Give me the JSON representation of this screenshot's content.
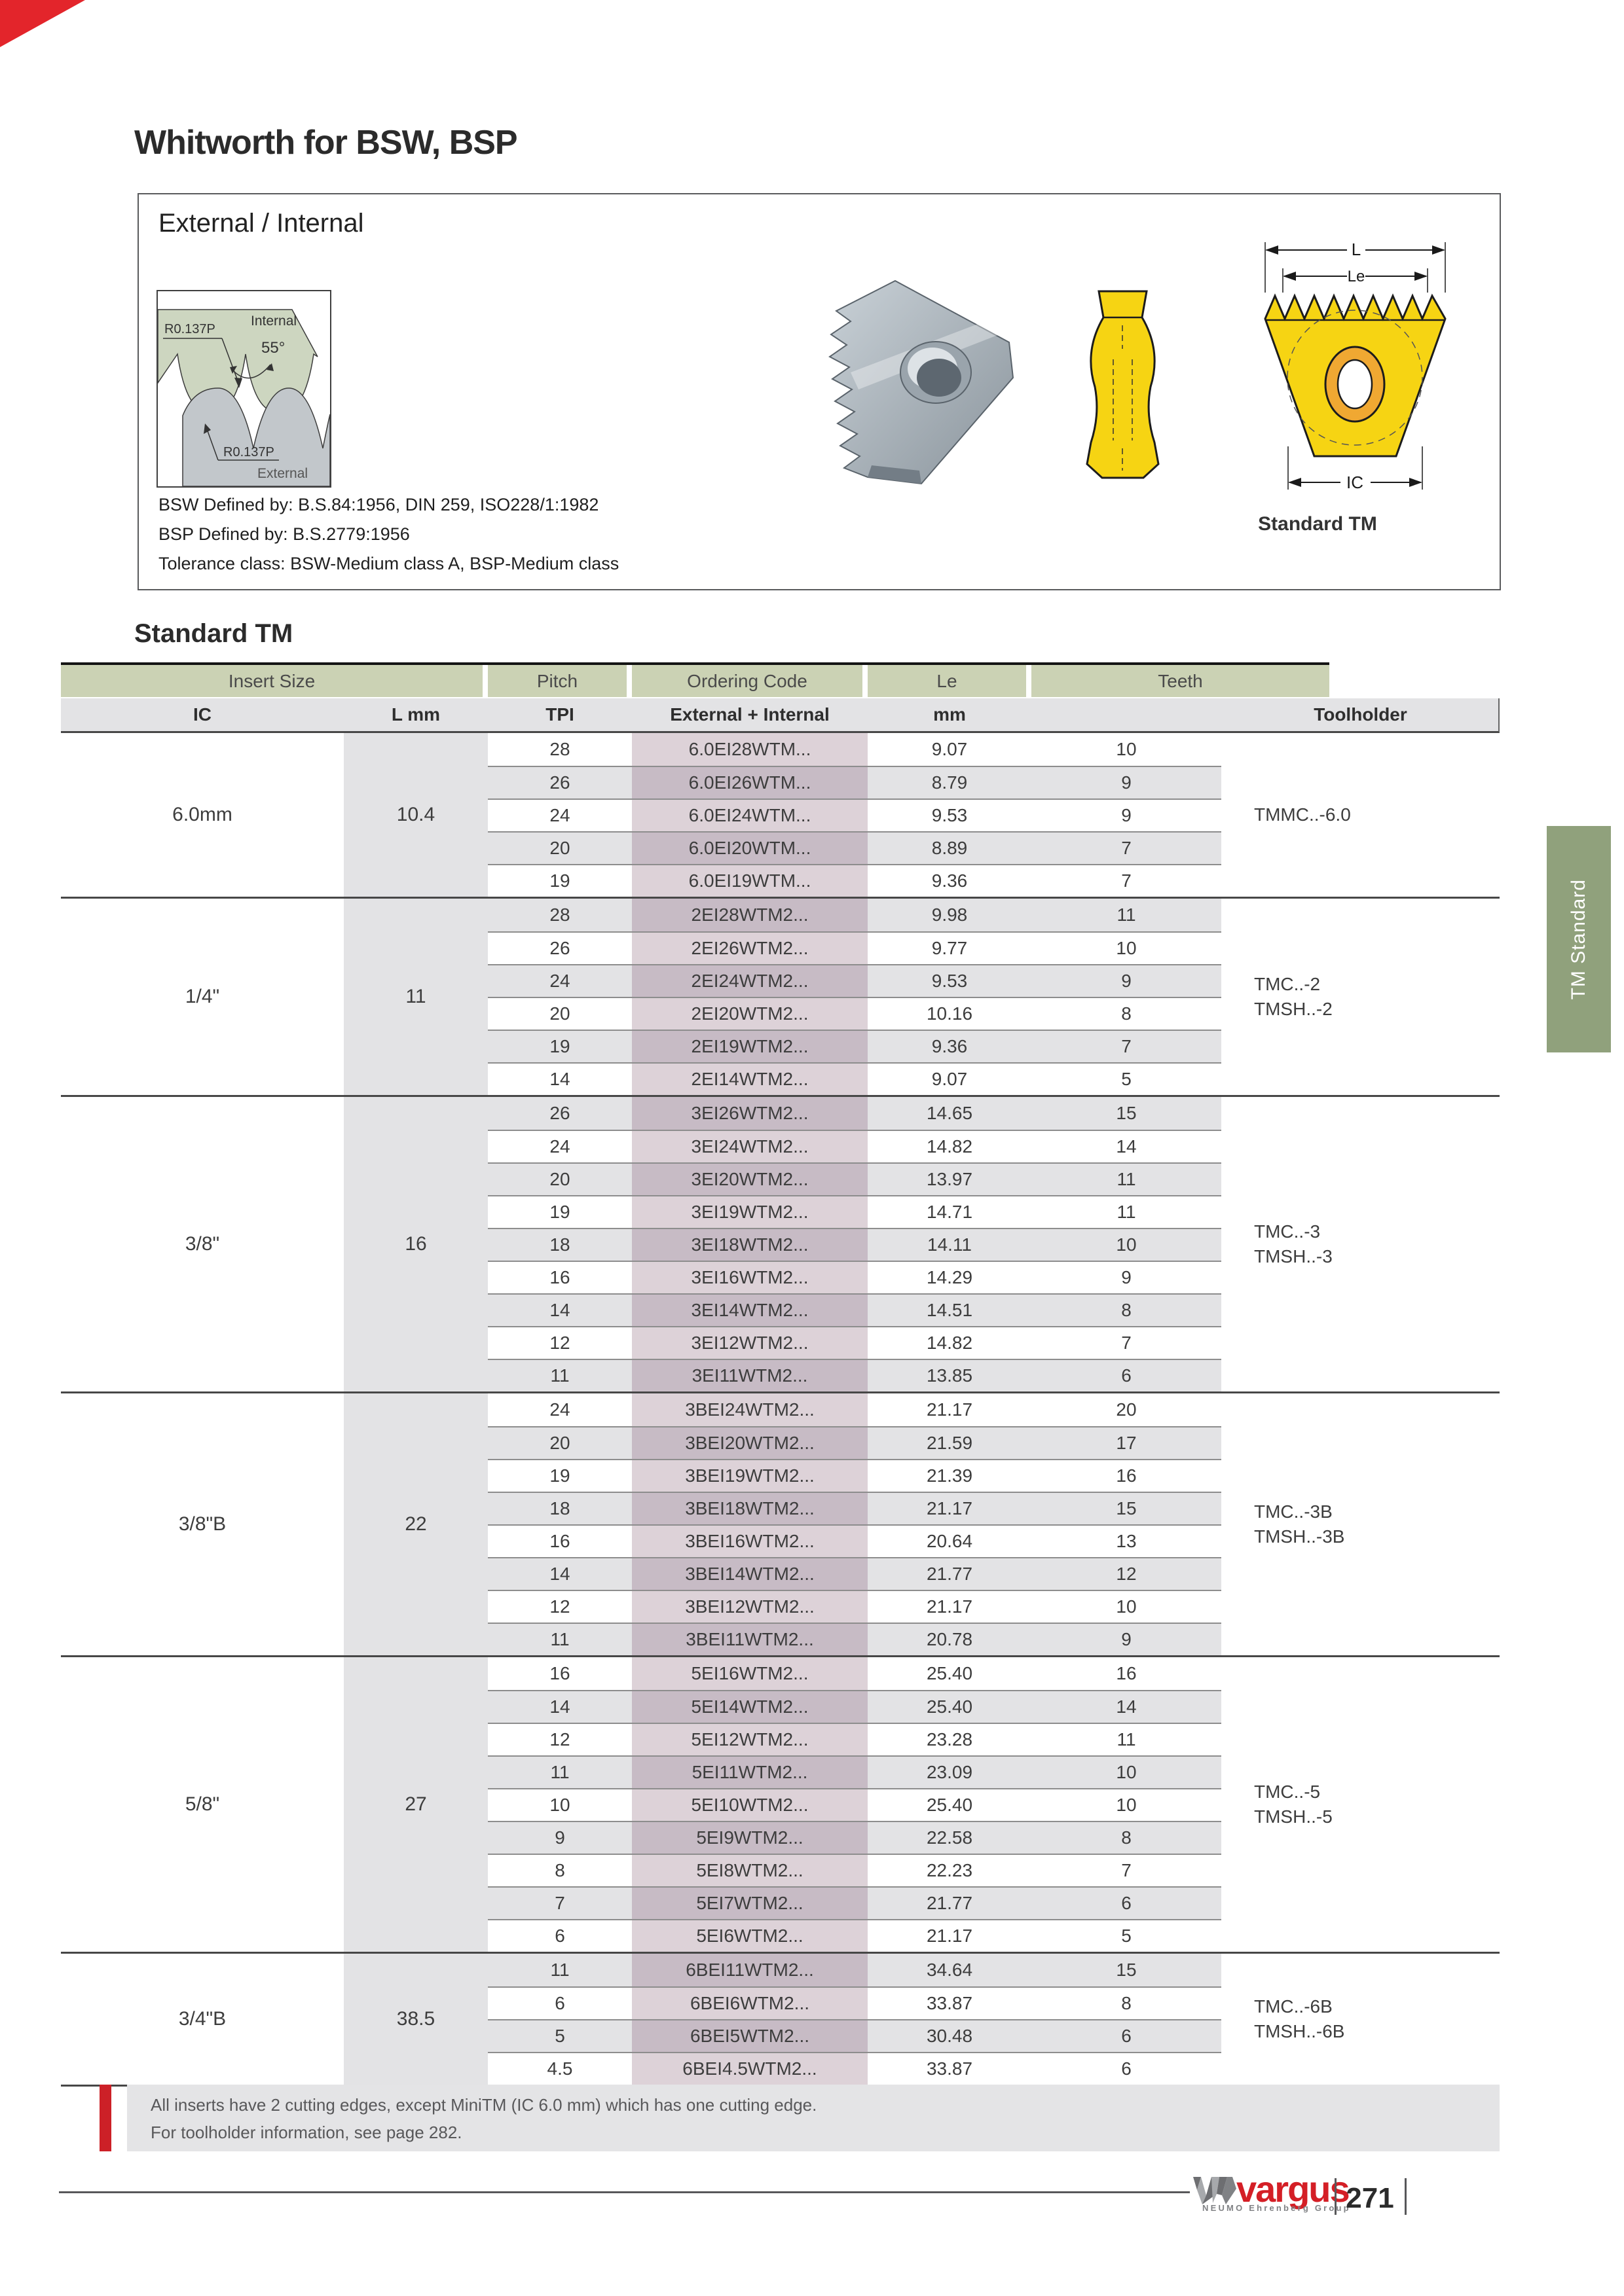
{
  "header": {
    "title": "Whitworth for BSW, BSP",
    "box_title": "External / Internal",
    "defined_lines": [
      "BSW Defined by: B.S.84:1956, DIN 259, ISO228/1:1982",
      "BSP Defined by: B.S.2779:1956",
      "Tolerance class: BSW-Medium class A, BSP-Medium class"
    ],
    "insert_caption": "Standard TM"
  },
  "profile": {
    "label_internal": "Internal",
    "label_external": "External",
    "angle": "55°",
    "radius_top": "R0.137P",
    "radius_bottom": "R0.137P"
  },
  "dims": {
    "l": "L",
    "le": "Le",
    "ic": "IC"
  },
  "side_tab": {
    "label": "TM Standard"
  },
  "table": {
    "section_title": "Standard TM",
    "col_headers_row1": {
      "insert_size": "Insert Size",
      "pitch": "Pitch",
      "ordering_code": "Ordering Code",
      "le": "Le",
      "teeth": "Teeth"
    },
    "col_headers_row2": {
      "ic": "IC",
      "l": "L mm",
      "tpi": "TPI",
      "code": "External + Internal",
      "mm": "mm",
      "toolholder": "Toolholder"
    },
    "groups": [
      {
        "ic": "6.0mm",
        "l": "10.4",
        "toolholder": [
          "TMMC..-6.0"
        ],
        "rows": [
          {
            "tpi": "28",
            "code": "6.0EI28WTM...",
            "le": "9.07",
            "teeth": "10"
          },
          {
            "tpi": "26",
            "code": "6.0EI26WTM...",
            "le": "8.79",
            "teeth": "9"
          },
          {
            "tpi": "24",
            "code": "6.0EI24WTM...",
            "le": "9.53",
            "teeth": "9"
          },
          {
            "tpi": "20",
            "code": "6.0EI20WTM...",
            "le": "8.89",
            "teeth": "7"
          },
          {
            "tpi": "19",
            "code": "6.0EI19WTM...",
            "le": "9.36",
            "teeth": "7"
          }
        ]
      },
      {
        "ic": "1/4\"",
        "l": "11",
        "toolholder": [
          "TMC..-2",
          "TMSH..-2"
        ],
        "rows": [
          {
            "tpi": "28",
            "code": "2EI28WTM2...",
            "le": "9.98",
            "teeth": "11"
          },
          {
            "tpi": "26",
            "code": "2EI26WTM2...",
            "le": "9.77",
            "teeth": "10"
          },
          {
            "tpi": "24",
            "code": "2EI24WTM2...",
            "le": "9.53",
            "teeth": "9"
          },
          {
            "tpi": "20",
            "code": "2EI20WTM2...",
            "le": "10.16",
            "teeth": "8"
          },
          {
            "tpi": "19",
            "code": "2EI19WTM2...",
            "le": "9.36",
            "teeth": "7"
          },
          {
            "tpi": "14",
            "code": "2EI14WTM2...",
            "le": "9.07",
            "teeth": "5"
          }
        ]
      },
      {
        "ic": "3/8\"",
        "l": "16",
        "toolholder": [
          "TMC..-3",
          "TMSH..-3"
        ],
        "rows": [
          {
            "tpi": "26",
            "code": "3EI26WTM2...",
            "le": "14.65",
            "teeth": "15"
          },
          {
            "tpi": "24",
            "code": "3EI24WTM2...",
            "le": "14.82",
            "teeth": "14"
          },
          {
            "tpi": "20",
            "code": "3EI20WTM2...",
            "le": "13.97",
            "teeth": "11"
          },
          {
            "tpi": "19",
            "code": "3EI19WTM2...",
            "le": "14.71",
            "teeth": "11"
          },
          {
            "tpi": "18",
            "code": "3EI18WTM2...",
            "le": "14.11",
            "teeth": "10"
          },
          {
            "tpi": "16",
            "code": "3EI16WTM2...",
            "le": "14.29",
            "teeth": "9"
          },
          {
            "tpi": "14",
            "code": "3EI14WTM2...",
            "le": "14.51",
            "teeth": "8"
          },
          {
            "tpi": "12",
            "code": "3EI12WTM2...",
            "le": "14.82",
            "teeth": "7"
          },
          {
            "tpi": "11",
            "code": "3EI11WTM2...",
            "le": "13.85",
            "teeth": "6"
          }
        ]
      },
      {
        "ic": "3/8\"B",
        "l": "22",
        "toolholder": [
          "TMC..-3B",
          "TMSH..-3B"
        ],
        "rows": [
          {
            "tpi": "24",
            "code": "3BEI24WTM2...",
            "le": "21.17",
            "teeth": "20"
          },
          {
            "tpi": "20",
            "code": "3BEI20WTM2...",
            "le": "21.59",
            "teeth": "17"
          },
          {
            "tpi": "19",
            "code": "3BEI19WTM2...",
            "le": "21.39",
            "teeth": "16"
          },
          {
            "tpi": "18",
            "code": "3BEI18WTM2...",
            "le": "21.17",
            "teeth": "15"
          },
          {
            "tpi": "16",
            "code": "3BEI16WTM2...",
            "le": "20.64",
            "teeth": "13"
          },
          {
            "tpi": "14",
            "code": "3BEI14WTM2...",
            "le": "21.77",
            "teeth": "12"
          },
          {
            "tpi": "12",
            "code": "3BEI12WTM2...",
            "le": "21.17",
            "teeth": "10"
          },
          {
            "tpi": "11",
            "code": "3BEI11WTM2...",
            "le": "20.78",
            "teeth": "9"
          }
        ]
      },
      {
        "ic": "5/8\"",
        "l": "27",
        "toolholder": [
          "TMC..-5",
          "TMSH..-5"
        ],
        "rows": [
          {
            "tpi": "16",
            "code": "5EI16WTM2...",
            "le": "25.40",
            "teeth": "16"
          },
          {
            "tpi": "14",
            "code": "5EI14WTM2...",
            "le": "25.40",
            "teeth": "14"
          },
          {
            "tpi": "12",
            "code": "5EI12WTM2...",
            "le": "23.28",
            "teeth": "11"
          },
          {
            "tpi": "11",
            "code": "5EI11WTM2...",
            "le": "23.09",
            "teeth": "10"
          },
          {
            "tpi": "10",
            "code": "5EI10WTM2...",
            "le": "25.40",
            "teeth": "10"
          },
          {
            "tpi": "9",
            "code": "5EI9WTM2...",
            "le": "22.58",
            "teeth": "8"
          },
          {
            "tpi": "8",
            "code": "5EI8WTM2...",
            "le": "22.23",
            "teeth": "7"
          },
          {
            "tpi": "7",
            "code": "5EI7WTM2...",
            "le": "21.77",
            "teeth": "6"
          },
          {
            "tpi": "6",
            "code": "5EI6WTM2...",
            "le": "21.17",
            "teeth": "5"
          }
        ]
      },
      {
        "ic": "3/4\"B",
        "l": "38.5",
        "toolholder": [
          "TMC..-6B",
          "TMSH..-6B"
        ],
        "rows": [
          {
            "tpi": "11",
            "code": "6BEI11WTM2...",
            "le": "34.64",
            "teeth": "15"
          },
          {
            "tpi": "6",
            "code": "6BEI6WTM2...",
            "le": "33.87",
            "teeth": "8"
          },
          {
            "tpi": "5",
            "code": "6BEI5WTM2...",
            "le": "30.48",
            "teeth": "6"
          },
          {
            "tpi": "4.5",
            "code": "6BEI4.5WTM2...",
            "le": "33.87",
            "teeth": "6"
          }
        ]
      }
    ]
  },
  "footnote": {
    "line1": "All inserts have 2 cutting edges, except MiniTM (IC 6.0 mm) which has one cutting edge.",
    "line2": "For toolholder information, see page 282."
  },
  "footer": {
    "brand": "vargus",
    "brand_sub": "NEUMO Ehrenberg Group",
    "page_number": "271"
  }
}
